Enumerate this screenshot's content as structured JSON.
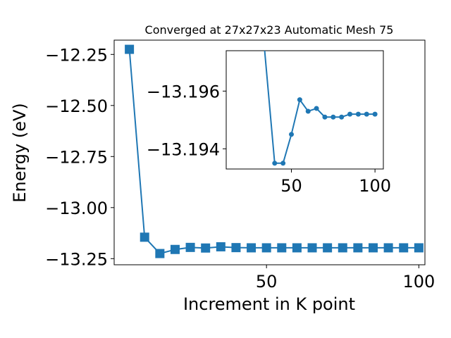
{
  "chart_data": [
    {
      "type": "line",
      "title": "Converged at 27x27x23 Automatic Mesh 75",
      "xlabel": "Increment in K point",
      "ylabel": "Energy (eV)",
      "xlim": [
        0,
        102
      ],
      "ylim": [
        -13.28,
        -12.18
      ],
      "xticks": [
        50,
        100
      ],
      "xtick_labels": [
        "50",
        "100"
      ],
      "yticks": [
        -12.25,
        -12.5,
        -12.75,
        -13.0,
        -13.25
      ],
      "ytick_labels": [
        "−12.25",
        "−12.50",
        "−12.75",
        "−13.00",
        "−13.25"
      ],
      "grid": false,
      "color": "#1f77b4",
      "marker": "square",
      "series": [
        {
          "x": [
            5,
            10,
            15,
            20,
            25,
            30,
            35,
            40,
            45,
            50,
            55,
            60,
            65,
            70,
            75,
            80,
            85,
            90,
            95,
            100
          ],
          "y": [
            -12.225,
            -13.145,
            -13.225,
            -13.205,
            -13.195,
            -13.198,
            -13.192,
            -13.196,
            -13.197,
            -13.197,
            -13.197,
            -13.197,
            -13.197,
            -13.197,
            -13.197,
            -13.197,
            -13.197,
            -13.197,
            -13.197,
            -13.197
          ]
        }
      ]
    },
    {
      "type": "line",
      "title": "",
      "xlabel": "",
      "ylabel": "",
      "xlim": [
        11,
        105
      ],
      "ylim": [
        -13.1933,
        -13.1974
      ],
      "xticks": [
        50,
        100
      ],
      "xtick_labels": [
        "50",
        "100"
      ],
      "yticks": [
        -13.196,
        -13.194
      ],
      "ytick_labels": [
        "−13.196",
        "−13.194"
      ],
      "grid": false,
      "color": "#1f77b4",
      "marker": "circle",
      "series": [
        {
          "x": [
            30,
            40,
            45,
            50,
            55,
            60,
            65,
            70,
            75,
            80,
            85,
            90,
            95,
            100
          ],
          "y": [
            -13.2,
            -13.1935,
            -13.1935,
            -13.1945,
            -13.1957,
            -13.1953,
            -13.1954,
            -13.1951,
            -13.1951,
            -13.1951,
            -13.1952,
            -13.1952,
            -13.1952,
            -13.1952
          ]
        }
      ]
    }
  ]
}
